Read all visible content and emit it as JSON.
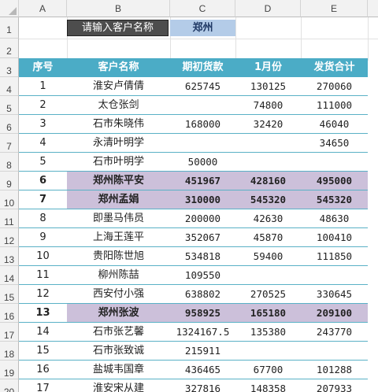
{
  "columns": [
    "A",
    "B",
    "C",
    "D",
    "E"
  ],
  "rows": [
    "1",
    "2",
    "3",
    "4",
    "5",
    "6",
    "7",
    "8",
    "9",
    "10",
    "11",
    "12",
    "13",
    "14",
    "15",
    "16",
    "17",
    "18",
    "19",
    "20"
  ],
  "input": {
    "label": "请输入客户名称",
    "value": "郑州"
  },
  "table": {
    "headers": [
      "序号",
      "客户名称",
      "期初货款",
      "1月份",
      "发货合计"
    ],
    "rows": [
      {
        "no": "1",
        "name": "淮安卢倩倩",
        "opening": "625745",
        "jan": "130125",
        "total": "270060",
        "highlight": false
      },
      {
        "no": "2",
        "name": "太仓张剑",
        "opening": "",
        "jan": "74800",
        "total": "111000",
        "highlight": false
      },
      {
        "no": "3",
        "name": "石市朱晓伟",
        "opening": "168000",
        "jan": "32420",
        "total": "46040",
        "highlight": false
      },
      {
        "no": "4",
        "name": "永清叶明学",
        "opening": "",
        "jan": "",
        "total": "34650",
        "highlight": false
      },
      {
        "no": "5",
        "name": "石市叶明学",
        "opening": "50000",
        "jan": "",
        "total": "",
        "highlight": false
      },
      {
        "no": "6",
        "name": "郑州陈平安",
        "opening": "451967",
        "jan": "428160",
        "total": "495000",
        "highlight": true
      },
      {
        "no": "7",
        "name": "郑州孟娟",
        "opening": "310000",
        "jan": "545320",
        "total": "545320",
        "highlight": true
      },
      {
        "no": "8",
        "name": "即墨马伟员",
        "opening": "200000",
        "jan": "42630",
        "total": "48630",
        "highlight": false
      },
      {
        "no": "9",
        "name": "上海王莲平",
        "opening": "352067",
        "jan": "45870",
        "total": "100410",
        "highlight": false
      },
      {
        "no": "10",
        "name": "贵阳陈世旭",
        "opening": "534818",
        "jan": "59400",
        "total": "111850",
        "highlight": false
      },
      {
        "no": "11",
        "name": "柳州陈喆",
        "opening": "109550",
        "jan": "",
        "total": "",
        "highlight": false
      },
      {
        "no": "12",
        "name": "西安付小强",
        "opening": "638802",
        "jan": "270525",
        "total": "330645",
        "highlight": false
      },
      {
        "no": "13",
        "name": "郑州张波",
        "opening": "958925",
        "jan": "165180",
        "total": "209100",
        "highlight": true
      },
      {
        "no": "14",
        "name": "石市张艺馨",
        "opening": "1324167.5",
        "jan": "135380",
        "total": "243770",
        "highlight": false
      },
      {
        "no": "15",
        "name": "石市张致诚",
        "opening": "215911",
        "jan": "",
        "total": "",
        "highlight": false
      },
      {
        "no": "16",
        "name": "盐城韦国章",
        "opening": "436465",
        "jan": "67700",
        "total": "101288",
        "highlight": false
      },
      {
        "no": "17",
        "name": "淮安宋从建",
        "opening": "327816",
        "jan": "148358",
        "total": "207933",
        "highlight": false
      }
    ]
  }
}
